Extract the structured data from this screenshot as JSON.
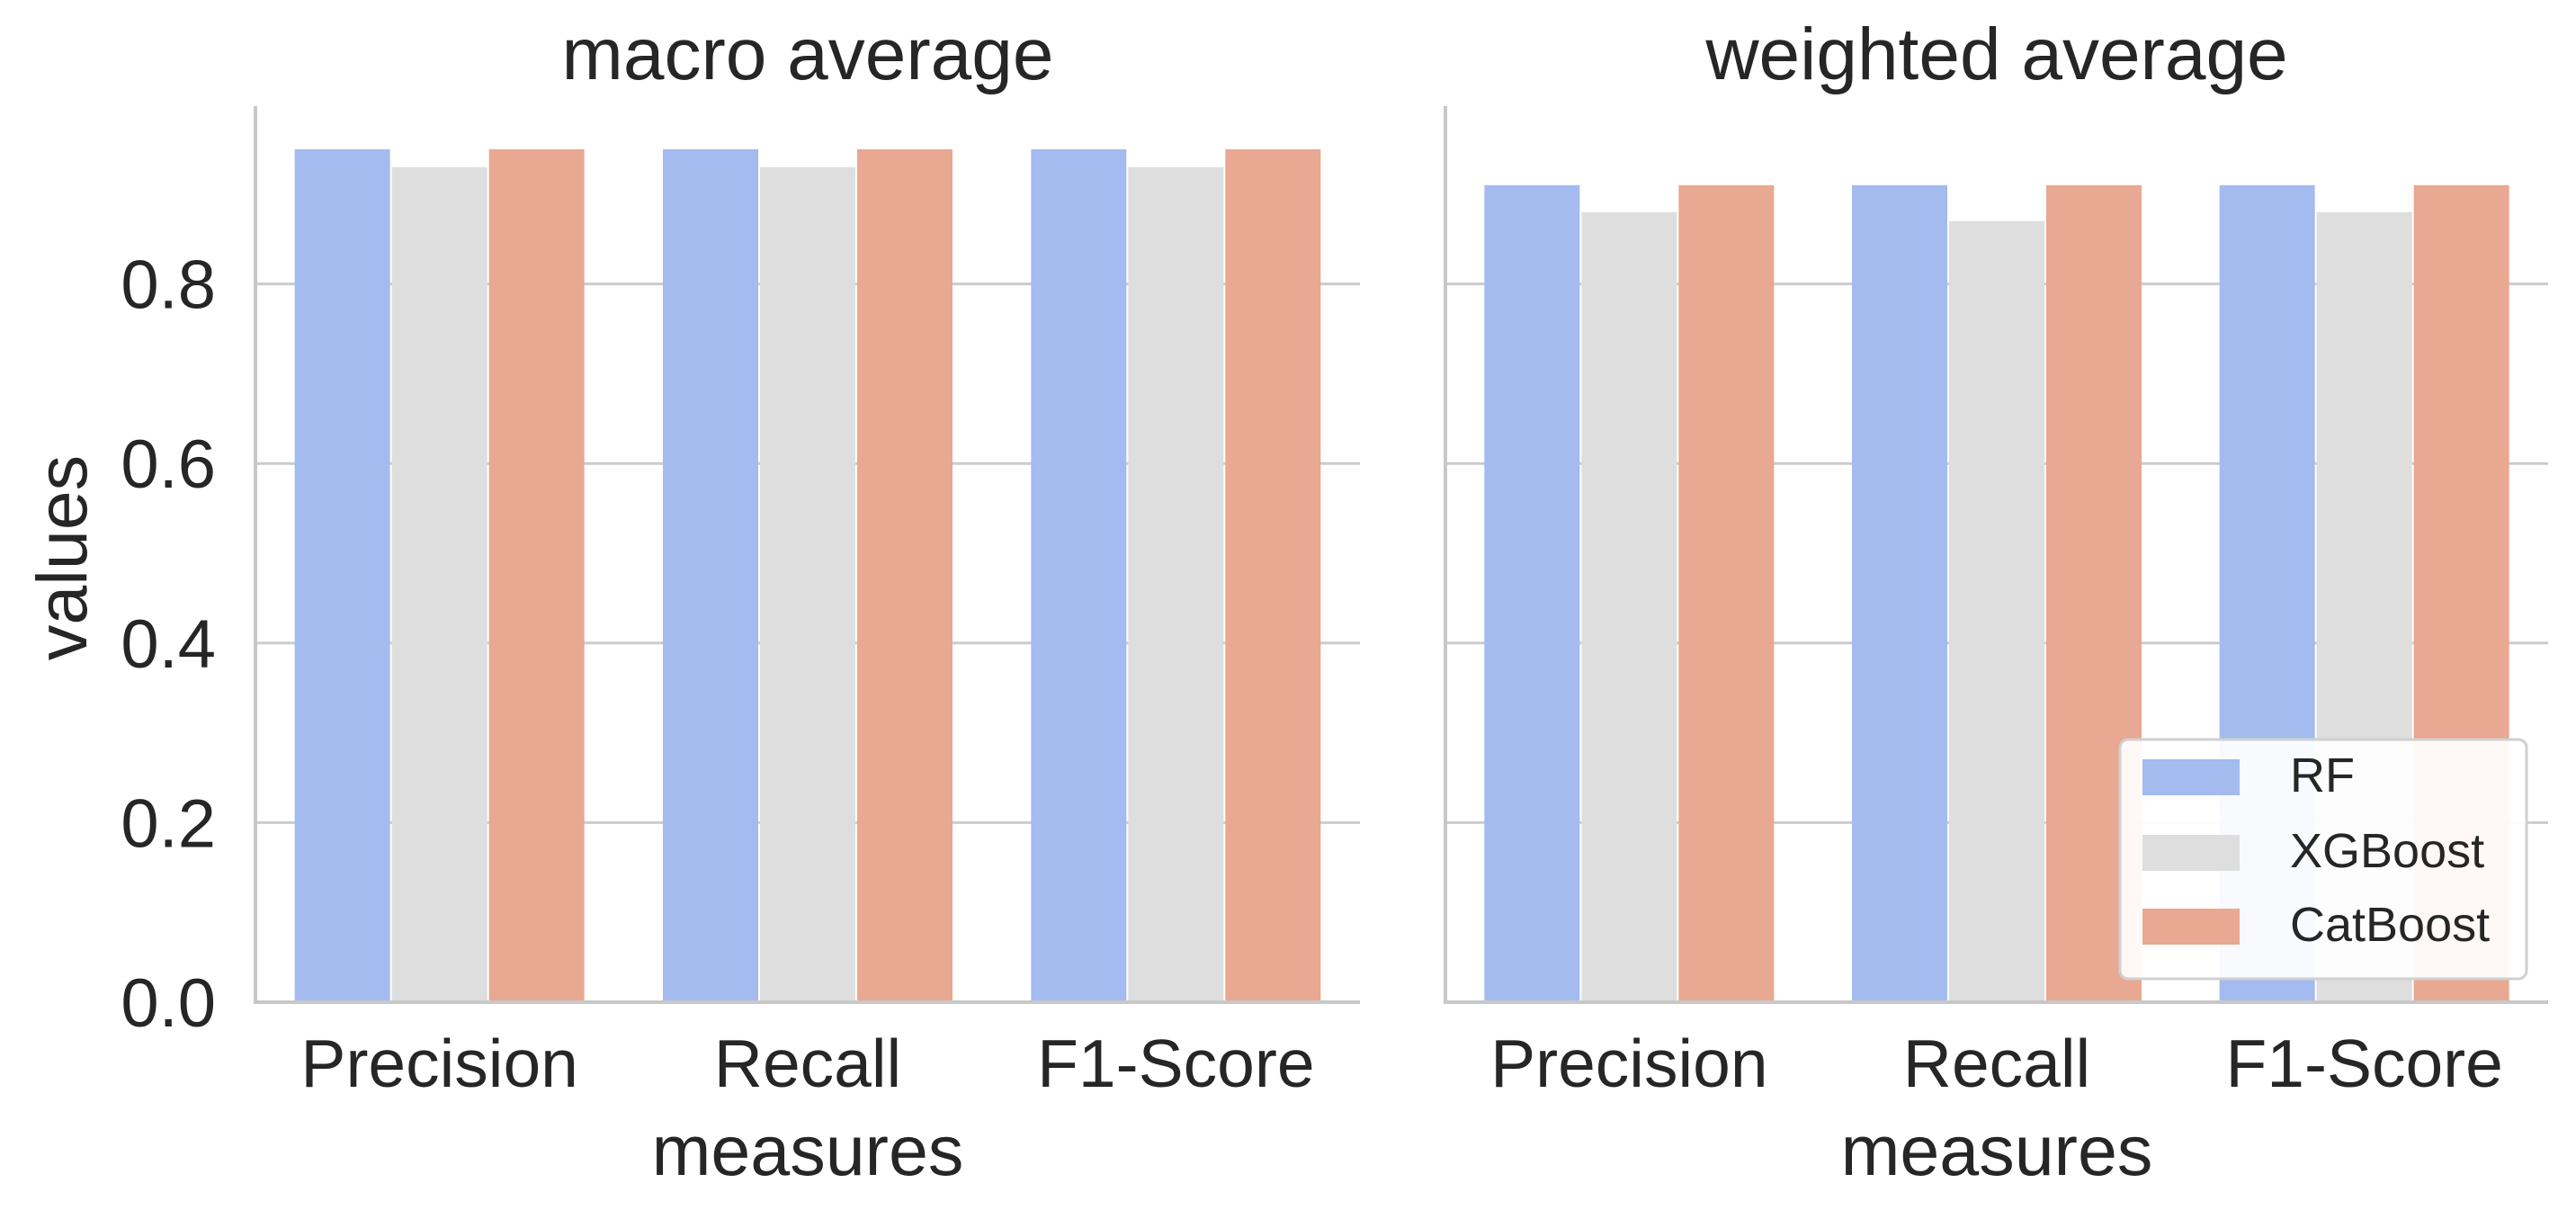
{
  "chart_data": [
    {
      "type": "bar",
      "title": "macro average",
      "xlabel": "measures",
      "ylabel": "values",
      "ylim": [
        0,
        1.0
      ],
      "yticks": [
        "0.0",
        "0.2",
        "0.4",
        "0.6",
        "0.8"
      ],
      "grid": "horizontal",
      "categories": [
        "Precision",
        "Recall",
        "F1-Score"
      ],
      "series": [
        {
          "name": "RF",
          "values": [
            0.95,
            0.95,
            0.95
          ]
        },
        {
          "name": "XGBoost",
          "values": [
            0.93,
            0.93,
            0.93
          ]
        },
        {
          "name": "CatBoost",
          "values": [
            0.95,
            0.95,
            0.95
          ]
        }
      ]
    },
    {
      "type": "bar",
      "title": "weighted average",
      "xlabel": "measures",
      "ylabel": "",
      "ylim": [
        0,
        1.0
      ],
      "grid": "horizontal",
      "legend": "lower-right",
      "categories": [
        "Precision",
        "Recall",
        "F1-Score"
      ],
      "series": [
        {
          "name": "RF",
          "values": [
            0.91,
            0.91,
            0.91
          ]
        },
        {
          "name": "XGBoost",
          "values": [
            0.88,
            0.87,
            0.88
          ]
        },
        {
          "name": "CatBoost",
          "values": [
            0.91,
            0.91,
            0.91
          ]
        }
      ]
    }
  ],
  "colors": {
    "RF": "#a3bbee",
    "XGBoost": "#dedede",
    "CatBoost": "#e8a891",
    "grid": "#cccccc",
    "axis": "#c8c8c8",
    "text": "#262626"
  },
  "legend": {
    "items": [
      "RF",
      "XGBoost",
      "CatBoost"
    ]
  }
}
